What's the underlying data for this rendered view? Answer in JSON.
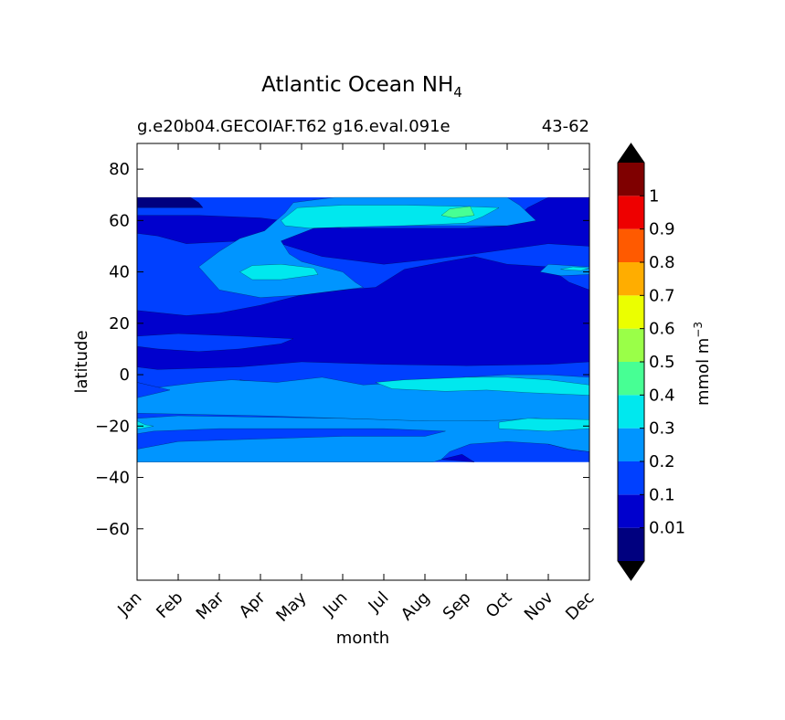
{
  "chart_data": {
    "type": "heatmap",
    "plot_kind": "filled contour",
    "title": "Atlantic Ocean NH",
    "title_subscript": "4",
    "subtitle_left": "g.e20b04.GECOIAF.T62 g16.eval.091e",
    "subtitle_right": "43-62",
    "xlabel": "month",
    "ylabel": "latitude",
    "x_categories": [
      "Jan",
      "Feb",
      "Mar",
      "Apr",
      "May",
      "Jun",
      "Jul",
      "Aug",
      "Sep",
      "Oct",
      "Nov",
      "Dec"
    ],
    "ylim": [
      -80,
      90
    ],
    "y_ticks": [
      80,
      60,
      40,
      20,
      0,
      -20,
      -40,
      -60
    ],
    "y_tick_labels": [
      "80",
      "60",
      "40",
      "20",
      "0",
      "−20",
      "−40",
      "−60"
    ],
    "data_lat_range": [
      -34,
      69
    ],
    "colorbar": {
      "label": "mmol m",
      "label_superscript": "−3",
      "levels": [
        0,
        0.01,
        0.1,
        0.2,
        0.3,
        0.4,
        0.5,
        0.6,
        0.7,
        0.8,
        0.9,
        1,
        1.1
      ],
      "tick_labels": [
        "0.01",
        "0.1",
        "0.2",
        "0.3",
        "0.4",
        "0.5",
        "0.6",
        "0.7",
        "0.8",
        "0.9",
        "1"
      ],
      "colors": [
        "#00007f",
        "#0000cd",
        "#0040ff",
        "#0095ff",
        "#00e8ee",
        "#47ff94",
        "#9aff48",
        "#ebff00",
        "#ffad00",
        "#ff5a00",
        "#ee0000",
        "#7f0000"
      ],
      "under_color": "#000000",
      "over_color": "#000000"
    },
    "background_level_color": "#0000cd",
    "regions": [
      {
        "level": 2,
        "points": [
          [
            0,
            69
          ],
          [
            11,
            69
          ],
          [
            11,
            -34
          ],
          [
            0,
            -34
          ]
        ]
      },
      {
        "level": 1,
        "points": [
          [
            0,
            25
          ],
          [
            0.6,
            24
          ],
          [
            1.2,
            23
          ],
          [
            2,
            24
          ],
          [
            3,
            27
          ],
          [
            4,
            31
          ],
          [
            5,
            33
          ],
          [
            5.8,
            34
          ],
          [
            6.5,
            41
          ],
          [
            7.5,
            44
          ],
          [
            8.2,
            46
          ],
          [
            9,
            43
          ],
          [
            10,
            42
          ],
          [
            10.5,
            36
          ],
          [
            11,
            33
          ],
          [
            11,
            5
          ],
          [
            10,
            4
          ],
          [
            8,
            3.5
          ],
          [
            6,
            4
          ],
          [
            4,
            5
          ],
          [
            2.5,
            3
          ],
          [
            1.5,
            2.5
          ],
          [
            0.5,
            2
          ],
          [
            0,
            3
          ]
        ]
      },
      {
        "level": 2,
        "points": [
          [
            0,
            15
          ],
          [
            1,
            16
          ],
          [
            2.5,
            15
          ],
          [
            3.8,
            14
          ],
          [
            3.5,
            12
          ],
          [
            2.5,
            10
          ],
          [
            1.5,
            9
          ],
          [
            0.5,
            10
          ],
          [
            0,
            11
          ]
        ]
      },
      {
        "level": 1,
        "points": [
          [
            2.5,
            -2
          ],
          [
            3,
            -3
          ],
          [
            3.5,
            -6
          ],
          [
            3.8,
            -8
          ],
          [
            3.2,
            -9
          ],
          [
            2.8,
            -7
          ]
        ]
      },
      {
        "level": 1,
        "points": [
          [
            7.4,
            -33
          ],
          [
            7.9,
            -31
          ],
          [
            8.2,
            -34
          ]
        ]
      },
      {
        "level": 1,
        "points": [
          [
            10,
            -27
          ],
          [
            10.5,
            -25
          ],
          [
            11,
            -24
          ],
          [
            11,
            -30
          ],
          [
            10.5,
            -29
          ]
        ]
      },
      {
        "level": 1,
        "points": [
          [
            0,
            62
          ],
          [
            1.5,
            62
          ],
          [
            3,
            61
          ],
          [
            5,
            57
          ],
          [
            7,
            57
          ],
          [
            8,
            57
          ],
          [
            9,
            58
          ],
          [
            9.5,
            65
          ],
          [
            10,
            69
          ],
          [
            11,
            69
          ],
          [
            11,
            50
          ],
          [
            10,
            51
          ],
          [
            8.2,
            47
          ],
          [
            7.2,
            45
          ],
          [
            6,
            43
          ],
          [
            4.5,
            46
          ],
          [
            3.5,
            51
          ],
          [
            2.5,
            52
          ],
          [
            1.2,
            51
          ],
          [
            0.5,
            54
          ],
          [
            0,
            55
          ]
        ]
      },
      {
        "level": 0,
        "points": [
          [
            0,
            69
          ],
          [
            1.3,
            69
          ],
          [
            1.5,
            67
          ],
          [
            1.6,
            65
          ],
          [
            0.8,
            65
          ],
          [
            0,
            65
          ]
        ]
      },
      {
        "level": 3,
        "points": [
          [
            3.5,
            52
          ],
          [
            4.3,
            57
          ],
          [
            5.5,
            58
          ],
          [
            6.5,
            58
          ],
          [
            8,
            58
          ],
          [
            9,
            58
          ],
          [
            9.7,
            60
          ],
          [
            9.3,
            66
          ],
          [
            9,
            69
          ],
          [
            7,
            69
          ],
          [
            4.8,
            69
          ],
          [
            3.8,
            67
          ],
          [
            3.6,
            63
          ],
          [
            3.1,
            56
          ],
          [
            2.5,
            53
          ],
          [
            2,
            48
          ],
          [
            1.5,
            42
          ],
          [
            2,
            33
          ],
          [
            3,
            30
          ],
          [
            4,
            31
          ],
          [
            5.5,
            34
          ],
          [
            5.3,
            36
          ],
          [
            5,
            40
          ],
          [
            4,
            44
          ],
          [
            3.7,
            47
          ]
        ]
      },
      {
        "level": 3,
        "points": [
          [
            9.8,
            40
          ],
          [
            10,
            43
          ],
          [
            11,
            42
          ],
          [
            11,
            39
          ],
          [
            10.3,
            38.5
          ]
        ]
      },
      {
        "level": 4,
        "points": [
          [
            3.5,
            60
          ],
          [
            3.9,
            65
          ],
          [
            5,
            66
          ],
          [
            6.5,
            66
          ],
          [
            8,
            65.5
          ],
          [
            8.8,
            65
          ],
          [
            8.4,
            61.5
          ],
          [
            8,
            59
          ],
          [
            6.5,
            58
          ],
          [
            5.2,
            57.5
          ],
          [
            4.2,
            57
          ],
          [
            3.6,
            58
          ]
        ]
      },
      {
        "level": 4,
        "points": [
          [
            2.5,
            40
          ],
          [
            2.8,
            42.5
          ],
          [
            3.5,
            43
          ],
          [
            4.3,
            41.5
          ],
          [
            4.4,
            39
          ],
          [
            3.5,
            37
          ],
          [
            2.8,
            37
          ]
        ]
      },
      {
        "level": 4,
        "points": [
          [
            10.3,
            41
          ],
          [
            10.6,
            42
          ],
          [
            11,
            41.5
          ],
          [
            10.8,
            40.5
          ]
        ]
      },
      {
        "level": 5,
        "points": [
          [
            7.4,
            62
          ],
          [
            7.6,
            64.5
          ],
          [
            8.1,
            65.5
          ],
          [
            8.2,
            62
          ],
          [
            7.7,
            61
          ]
        ]
      },
      {
        "level": 3,
        "points": [
          [
            0,
            -3
          ],
          [
            0.5,
            -5
          ],
          [
            1.5,
            -3
          ],
          [
            2.3,
            -2
          ],
          [
            3.4,
            -3
          ],
          [
            4.5,
            -1
          ],
          [
            5.5,
            -4
          ],
          [
            6.5,
            -3
          ],
          [
            8,
            -1
          ],
          [
            9,
            0
          ],
          [
            10,
            0
          ],
          [
            11,
            -1
          ],
          [
            11,
            -18
          ],
          [
            10.5,
            -18.5
          ],
          [
            8.8,
            -18
          ],
          [
            7.3,
            -18.3
          ],
          [
            5,
            -17
          ],
          [
            3,
            -16
          ],
          [
            1.5,
            -15.5
          ],
          [
            0,
            -15
          ]
        ]
      },
      {
        "level": 2,
        "points": [
          [
            0,
            -3
          ],
          [
            0.8,
            -6
          ],
          [
            0,
            -9
          ]
        ]
      },
      {
        "level": 4,
        "points": [
          [
            5.8,
            -3
          ],
          [
            6.5,
            -2
          ],
          [
            8,
            -1
          ],
          [
            9,
            -1
          ],
          [
            10,
            -2
          ],
          [
            11,
            -4
          ],
          [
            11,
            -8
          ],
          [
            9.5,
            -7
          ],
          [
            8.5,
            -6
          ],
          [
            7.5,
            -6.5
          ],
          [
            6.2,
            -5.5
          ]
        ]
      },
      {
        "level": 3,
        "points": [
          [
            0,
            -17
          ],
          [
            1,
            -16
          ],
          [
            3,
            -16.5
          ],
          [
            5,
            -17
          ],
          [
            7,
            -18
          ],
          [
            8.5,
            -18
          ],
          [
            9.7,
            -17
          ],
          [
            11,
            -18
          ],
          [
            11,
            -30
          ],
          [
            10.5,
            -29
          ],
          [
            10,
            -27
          ],
          [
            9,
            -26
          ],
          [
            8.1,
            -27
          ],
          [
            7.6,
            -30
          ],
          [
            7.4,
            -33
          ],
          [
            7.2,
            -34
          ],
          [
            0,
            -34
          ],
          [
            0,
            -29
          ],
          [
            1,
            -26
          ],
          [
            3,
            -25
          ],
          [
            5,
            -24
          ],
          [
            7,
            -24
          ],
          [
            7.5,
            -22
          ],
          [
            6,
            -21
          ],
          [
            4,
            -21
          ],
          [
            2,
            -21
          ],
          [
            0.4,
            -22
          ],
          [
            0,
            -23
          ]
        ]
      },
      {
        "level": 4,
        "points": [
          [
            0,
            -18
          ],
          [
            0.2,
            -19.5
          ],
          [
            0.4,
            -20
          ],
          [
            0.1,
            -21
          ],
          [
            0,
            -21
          ]
        ]
      },
      {
        "level": 4,
        "points": [
          [
            8.8,
            -18.5
          ],
          [
            9.5,
            -17
          ],
          [
            11,
            -17.5
          ],
          [
            11,
            -21
          ],
          [
            10,
            -22
          ],
          [
            8.8,
            -21
          ]
        ]
      }
    ]
  }
}
